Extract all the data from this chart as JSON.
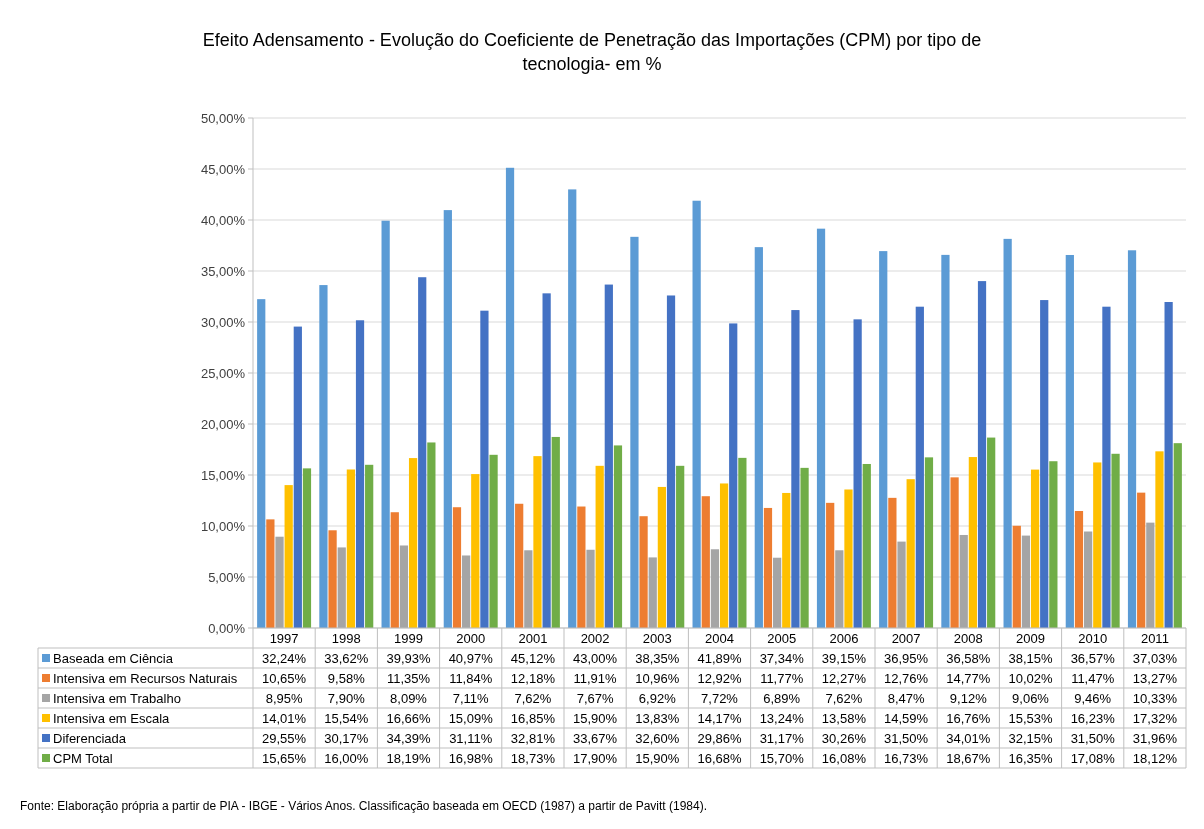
{
  "chart_data": {
    "type": "bar",
    "title": "Efeito Adensamento - Evolução do Coeficiente de Penetração das Importações (CPM) por tipo de tecnologia- em %",
    "categories": [
      "1997",
      "1998",
      "1999",
      "2000",
      "2001",
      "2002",
      "2003",
      "2004",
      "2005",
      "2006",
      "2007",
      "2008",
      "2009",
      "2010",
      "2011"
    ],
    "series": [
      {
        "name": "Baseada em Ciência",
        "color": "#5b9bd5",
        "values": [
          32.24,
          33.62,
          39.93,
          40.97,
          45.12,
          43.0,
          38.35,
          41.89,
          37.34,
          39.15,
          36.95,
          36.58,
          38.15,
          36.57,
          37.03
        ],
        "value_labels": [
          "32,24%",
          "33,62%",
          "39,93%",
          "40,97%",
          "45,12%",
          "43,00%",
          "38,35%",
          "41,89%",
          "37,34%",
          "39,15%",
          "36,95%",
          "36,58%",
          "38,15%",
          "36,57%",
          "37,03%"
        ]
      },
      {
        "name": "Intensiva em Recursos Naturais",
        "color": "#ed7d31",
        "values": [
          10.65,
          9.58,
          11.35,
          11.84,
          12.18,
          11.91,
          10.96,
          12.92,
          11.77,
          12.27,
          12.76,
          14.77,
          10.02,
          11.47,
          13.27
        ],
        "value_labels": [
          "10,65%",
          "9,58%",
          "11,35%",
          "11,84%",
          "12,18%",
          "11,91%",
          "10,96%",
          "12,92%",
          "11,77%",
          "12,27%",
          "12,76%",
          "14,77%",
          "10,02%",
          "11,47%",
          "13,27%"
        ]
      },
      {
        "name": "Intensiva em Trabalho",
        "color": "#a5a5a5",
        "values": [
          8.95,
          7.9,
          8.09,
          7.11,
          7.62,
          7.67,
          6.92,
          7.72,
          6.89,
          7.62,
          8.47,
          9.12,
          9.06,
          9.46,
          10.33
        ],
        "value_labels": [
          "8,95%",
          "7,90%",
          "8,09%",
          "7,11%",
          "7,62%",
          "7,67%",
          "6,92%",
          "7,72%",
          "6,89%",
          "7,62%",
          "8,47%",
          "9,12%",
          "9,06%",
          "9,46%",
          "10,33%"
        ]
      },
      {
        "name": "Intensiva em Escala",
        "color": "#ffc000",
        "values": [
          14.01,
          15.54,
          16.66,
          15.09,
          16.85,
          15.9,
          13.83,
          14.17,
          13.24,
          13.58,
          14.59,
          16.76,
          15.53,
          16.23,
          17.32
        ],
        "value_labels": [
          "14,01%",
          "15,54%",
          "16,66%",
          "15,09%",
          "16,85%",
          "15,90%",
          "13,83%",
          "14,17%",
          "13,24%",
          "13,58%",
          "14,59%",
          "16,76%",
          "15,53%",
          "16,23%",
          "17,32%"
        ]
      },
      {
        "name": "Diferenciada",
        "color": "#4472c4",
        "values": [
          29.55,
          30.17,
          34.39,
          31.11,
          32.81,
          33.67,
          32.6,
          29.86,
          31.17,
          30.26,
          31.5,
          34.01,
          32.15,
          31.5,
          31.96
        ],
        "value_labels": [
          "29,55%",
          "30,17%",
          "34,39%",
          "31,11%",
          "32,81%",
          "33,67%",
          "32,60%",
          "29,86%",
          "31,17%",
          "30,26%",
          "31,50%",
          "34,01%",
          "32,15%",
          "31,50%",
          "31,96%"
        ]
      },
      {
        "name": "CPM Total",
        "color": "#70ad47",
        "values": [
          15.65,
          16.0,
          18.19,
          16.98,
          18.73,
          17.9,
          15.9,
          16.68,
          15.7,
          16.08,
          16.73,
          18.67,
          16.35,
          17.08,
          18.12
        ],
        "value_labels": [
          "15,65%",
          "16,00%",
          "18,19%",
          "16,98%",
          "18,73%",
          "17,90%",
          "15,90%",
          "16,68%",
          "15,70%",
          "16,08%",
          "16,73%",
          "18,67%",
          "16,35%",
          "17,08%",
          "18,12%"
        ]
      }
    ],
    "ylim": [
      0,
      50
    ],
    "yticks": [
      {
        "value": 0,
        "label": "0,00%"
      },
      {
        "value": 5,
        "label": "5,00%"
      },
      {
        "value": 10,
        "label": "10,00%"
      },
      {
        "value": 15,
        "label": "15,00%"
      },
      {
        "value": 20,
        "label": "20,00%"
      },
      {
        "value": 25,
        "label": "25,00%"
      },
      {
        "value": 30,
        "label": "30,00%"
      },
      {
        "value": 35,
        "label": "35,00%"
      },
      {
        "value": 40,
        "label": "40,00%"
      },
      {
        "value": 45,
        "label": "45,00%"
      },
      {
        "value": 50,
        "label": "50,00%"
      }
    ],
    "grid": "y",
    "legend": "bottom",
    "annotations": [
      "Fonte: Elaboração própria a partir de PIA - IBGE - Vários Anos. Classificação baseada em OECD (1987) a partir de Pavitt (1984)."
    ]
  }
}
